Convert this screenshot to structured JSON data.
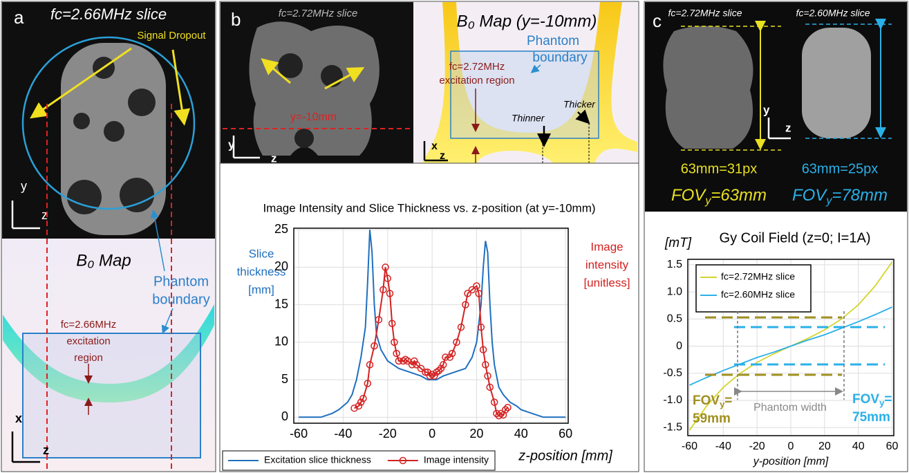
{
  "panels": {
    "a": {
      "label": "a",
      "slice_title": "fc=2.66MHz slice",
      "dropout": "Signal Dropout",
      "axis_y": "y",
      "axis_z": "z",
      "map_title": "B₀ Map",
      "boundary": [
        "Phantom",
        "boundary"
      ],
      "region": [
        "fc=2.66MHz",
        "excitation",
        "region"
      ],
      "map_axis_x": "x",
      "map_axis_z": "z"
    },
    "b": {
      "label": "b",
      "slice_title": "fc=2.72MHz slice",
      "cut": "y=-10mm",
      "axis_y": "y",
      "axis_z": "z",
      "map_title": "B₀ Map (y=-10mm)",
      "boundary": [
        "Phantom",
        "boundary"
      ],
      "region": [
        "fc=2.72MHz",
        "excitation region"
      ],
      "thinner": "Thinner",
      "thicker": "Thicker",
      "map_axis_x": "x",
      "map_axis_z": "z"
    },
    "c": {
      "label": "c",
      "slice_left": "fc=2.72MHz slice",
      "slice_right": "fc=2.60MHz slice",
      "axis_y": "y",
      "axis_z": "z",
      "px_left": "63mm=31px",
      "px_right": "63mm=25px",
      "fov_left": {
        "main": "FOV",
        "sub": "y",
        "rest": "=63mm"
      },
      "fov_right": {
        "main": "FOV",
        "sub": "y",
        "rest": "=78mm"
      }
    }
  },
  "chart_data": [
    {
      "type": "line",
      "title": "Image Intensity and Slice Thickness vs. z-position (at y=-10mm)",
      "xlabel": "z-position [mm]",
      "ylabel": [
        "Slice",
        "thickness",
        "[mm]"
      ],
      "y2label": [
        "Image",
        "intensity",
        "[unitless]"
      ],
      "xlim": [
        -62.2,
        61.2
      ],
      "ylim": [
        -0.8,
        25.2
      ],
      "xticks": [
        -60,
        -40,
        -20,
        0,
        20,
        40,
        60
      ],
      "yticks": [
        0,
        5,
        10,
        15,
        20,
        25
      ],
      "grid": true,
      "legend": "bottom",
      "series": [
        {
          "name": "Excitation slice thickness",
          "color": "#1f6fbf",
          "x": [
            -60,
            -50,
            -47,
            -45,
            -42,
            -40,
            -38,
            -36,
            -34,
            -32,
            -30,
            -29,
            -28,
            -27,
            -26,
            -25,
            -23,
            -20,
            -15,
            -10,
            -5,
            -2,
            0,
            2,
            5,
            10,
            15,
            18,
            20,
            22,
            23,
            24,
            25,
            26,
            27,
            28,
            30,
            32,
            35,
            38,
            40,
            45,
            50,
            60
          ],
          "values": [
            0,
            0,
            0.3,
            0.5,
            1,
            1.5,
            2,
            3,
            5,
            8,
            12,
            18,
            25,
            22,
            15,
            11,
            9,
            7.5,
            6.5,
            6,
            5.5,
            5,
            5,
            5,
            5.5,
            6,
            6.5,
            8,
            10,
            15,
            20,
            23.5,
            22,
            15,
            10,
            7,
            4,
            3,
            2,
            1.5,
            1,
            0.5,
            0,
            0
          ]
        },
        {
          "name": "Image intensity",
          "color": "#d42020",
          "marker": "circle",
          "x": [
            -35,
            -33,
            -32,
            -31,
            -29,
            -28,
            -26,
            -24,
            -22,
            -21,
            -20,
            -19,
            -18,
            -17,
            -16,
            -15,
            -13,
            -12,
            -11,
            -9,
            -8,
            -7,
            -5,
            -3,
            -2,
            -1,
            0,
            1,
            2,
            3,
            4,
            5,
            6,
            8,
            9,
            11,
            13,
            15,
            16,
            18,
            20,
            21,
            22,
            23,
            24,
            25,
            26,
            28,
            29,
            30,
            31,
            32,
            33,
            34
          ],
          "values": [
            1.2,
            1.5,
            2,
            2.5,
            4.5,
            7,
            9.5,
            13,
            17,
            20,
            18.5,
            16.5,
            12.5,
            10,
            8.5,
            7.5,
            7.5,
            7.7,
            7.5,
            7,
            7.5,
            7,
            6.5,
            6,
            6,
            5.5,
            5.7,
            5.5,
            6,
            6.2,
            6.5,
            7,
            8,
            8,
            8.5,
            10,
            12,
            15,
            16.5,
            17,
            17.5,
            16.5,
            12,
            9,
            7,
            5.5,
            4,
            2,
            0.5,
            0.2,
            0.5,
            0.3,
            1,
            1.3
          ]
        }
      ]
    },
    {
      "type": "line",
      "title": "Gy Coil Field (z=0; I=1A)",
      "ylabel": "[mT]",
      "xlabel": "y-position [mm]",
      "xlim": [
        -61,
        61
      ],
      "ylim": [
        -1.65,
        1.6
      ],
      "xticks": [
        -60,
        -40,
        -20,
        0,
        20,
        40,
        60
      ],
      "yticks": [
        1.5,
        {
          "value": 1,
          "label": "1.0"
        },
        0.5,
        0,
        -0.5,
        {
          "value": -1,
          "label": "-1.0"
        },
        -1.5
      ],
      "grid": true,
      "legend": "upper left",
      "x": [
        -60,
        -50,
        -40,
        -30,
        -20,
        -10,
        0,
        10,
        20,
        30,
        40,
        50,
        60
      ],
      "series": [
        {
          "name": "fc=2.72MHz slice",
          "color": "#d4d42c",
          "values": [
            -1.55,
            -1.11,
            -0.76,
            -0.5,
            -0.3,
            -0.14,
            0,
            0.14,
            0.3,
            0.5,
            0.76,
            1.11,
            1.55
          ]
        },
        {
          "name": "fc=2.60MHz slice",
          "color": "#2ab0e8",
          "values": [
            -0.72,
            -0.58,
            -0.45,
            -0.33,
            -0.21,
            -0.11,
            0,
            0.11,
            0.21,
            0.33,
            0.45,
            0.58,
            0.72
          ]
        }
      ],
      "annotations": {
        "fov_left": {
          "main": "FOV",
          "sub": "y",
          "rest": "=",
          "line2": "59mm"
        },
        "fov_right": {
          "main": "FOV",
          "sub": "y",
          "rest": "=",
          "line2": "75mm"
        },
        "phantom_width": "Phantom width"
      }
    }
  ]
}
